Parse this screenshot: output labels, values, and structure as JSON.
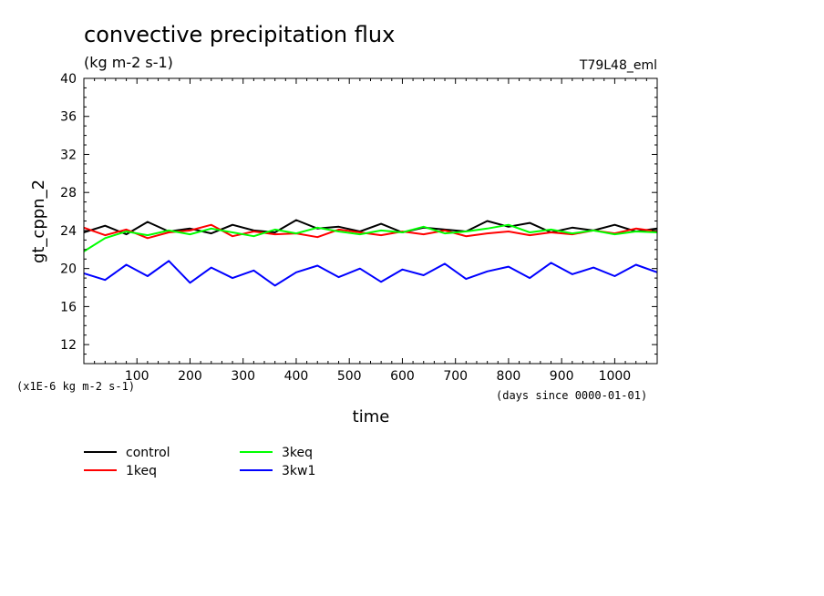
{
  "chart_data": {
    "type": "line",
    "title": "convective precipitation flux",
    "subtitle": "(kg m-2 s-1)",
    "run_label": "T79L48_eml",
    "ylabel": "gt_cppn_2",
    "xlabel": "time",
    "y_unit_note": "(x1E-6 kg m-2 s-1)",
    "x_unit_note": "(days since 0000-01-01)",
    "xlim": [
      0,
      1080
    ],
    "ylim": [
      10,
      40
    ],
    "x_ticks": [
      "100",
      "200",
      "300",
      "400",
      "500",
      "600",
      "700",
      "800",
      "900",
      "1000"
    ],
    "x_tick_values": [
      100,
      200,
      300,
      400,
      500,
      600,
      700,
      800,
      900,
      1000
    ],
    "y_ticks": [
      "12",
      "16",
      "20",
      "24",
      "28",
      "32",
      "36",
      "40"
    ],
    "y_tick_values": [
      12,
      16,
      20,
      24,
      28,
      32,
      36,
      40
    ],
    "grid": false,
    "legend_position": "bottom-left",
    "series": [
      {
        "name": "control",
        "color": "#000000",
        "x": [
          0,
          40,
          80,
          120,
          160,
          200,
          240,
          280,
          320,
          360,
          400,
          440,
          480,
          520,
          560,
          600,
          640,
          680,
          720,
          760,
          800,
          840,
          880,
          920,
          960,
          1000,
          1040,
          1080
        ],
        "values": [
          23.8,
          24.5,
          23.6,
          24.9,
          23.9,
          24.2,
          23.7,
          24.6,
          24.0,
          23.8,
          25.1,
          24.2,
          24.4,
          23.9,
          24.7,
          23.8,
          24.3,
          24.1,
          23.9,
          25.0,
          24.4,
          24.8,
          23.8,
          24.3,
          24.0,
          24.6,
          23.9,
          24.2
        ]
      },
      {
        "name": "1keq",
        "color": "#ff0000",
        "x": [
          0,
          40,
          80,
          120,
          160,
          200,
          240,
          280,
          320,
          360,
          400,
          440,
          480,
          520,
          560,
          600,
          640,
          680,
          720,
          760,
          800,
          840,
          880,
          920,
          960,
          1000,
          1040,
          1080
        ],
        "values": [
          24.3,
          23.5,
          24.1,
          23.2,
          23.8,
          24.0,
          24.6,
          23.4,
          23.9,
          23.6,
          23.7,
          23.3,
          24.1,
          23.8,
          23.5,
          23.9,
          23.6,
          24.0,
          23.4,
          23.7,
          23.9,
          23.5,
          23.8,
          23.6,
          24.0,
          23.7,
          24.2,
          23.9
        ]
      },
      {
        "name": "3keq",
        "color": "#00ff00",
        "x": [
          0,
          40,
          80,
          120,
          160,
          200,
          240,
          280,
          320,
          360,
          400,
          440,
          480,
          520,
          560,
          600,
          640,
          680,
          720,
          760,
          800,
          840,
          880,
          920,
          960,
          1000,
          1040,
          1080
        ],
        "values": [
          21.8,
          23.2,
          23.9,
          23.5,
          24.0,
          23.6,
          24.2,
          23.8,
          23.4,
          24.1,
          23.7,
          24.3,
          23.9,
          23.6,
          24.0,
          23.8,
          24.4,
          23.7,
          23.9,
          24.2,
          24.6,
          23.8,
          24.1,
          23.7,
          24.0,
          23.6,
          23.9,
          23.8
        ]
      },
      {
        "name": "3kw1",
        "color": "#0000ff",
        "x": [
          0,
          40,
          80,
          120,
          160,
          200,
          240,
          280,
          320,
          360,
          400,
          440,
          480,
          520,
          560,
          600,
          640,
          680,
          720,
          760,
          800,
          840,
          880,
          920,
          960,
          1000,
          1040,
          1080
        ],
        "values": [
          19.5,
          18.8,
          20.4,
          19.2,
          20.8,
          18.5,
          20.1,
          19.0,
          19.8,
          18.2,
          19.6,
          20.3,
          19.1,
          20.0,
          18.6,
          19.9,
          19.3,
          20.5,
          18.9,
          19.7,
          20.2,
          19.0,
          20.6,
          19.4,
          20.1,
          19.2,
          20.4,
          19.6
        ]
      }
    ]
  }
}
